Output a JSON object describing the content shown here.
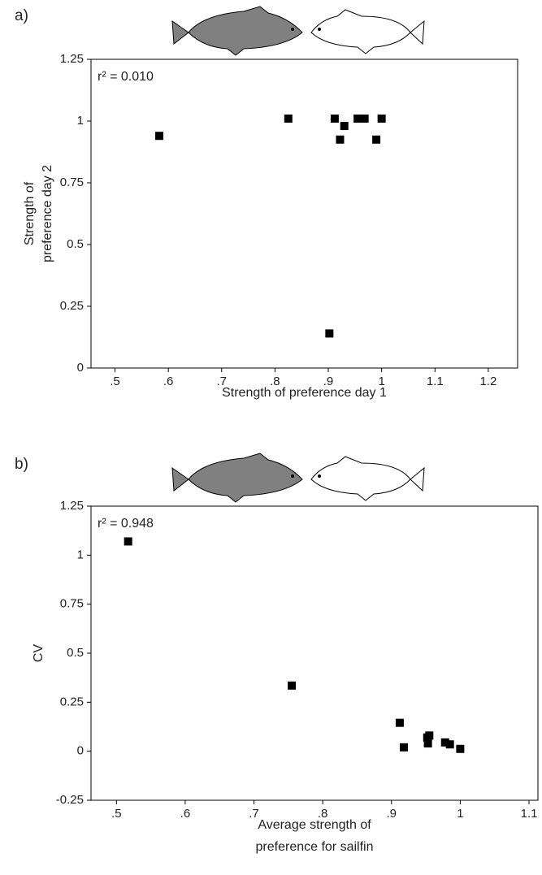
{
  "chart_data": [
    {
      "type": "scatter",
      "panel": "a)",
      "annotation": "r² = 0.010",
      "xlabel": "Strength of preference day 1",
      "ylabel": [
        "Strength of",
        "preference day 2"
      ],
      "x": [
        0.583,
        0.825,
        0.902,
        0.912,
        0.922,
        0.93,
        0.955,
        0.968,
        0.99,
        1.0
      ],
      "y": [
        0.94,
        1.01,
        0.14,
        1.01,
        0.925,
        0.98,
        1.01,
        1.01,
        0.925,
        1.01
      ],
      "color": "#000000",
      "xlim": [
        0.455,
        1.255
      ],
      "ylim": [
        0,
        1.25
      ],
      "xticks": [
        {
          "value": 0.5,
          "label": ".5"
        },
        {
          "value": 0.6,
          "label": ".6"
        },
        {
          "value": 0.7,
          "label": ".7"
        },
        {
          "value": 0.8,
          "label": ".8"
        },
        {
          "value": 0.9,
          "label": ".9"
        },
        1,
        1.1,
        1.2
      ],
      "yticks": [
        0,
        0.25,
        0.5,
        0.75,
        1,
        1.25
      ]
    },
    {
      "type": "scatter",
      "panel": "b)",
      "annotation": "r² = 0.948",
      "xlabel": [
        "Average strength of",
        "preference for sailfin"
      ],
      "ylabel": "CV",
      "x": [
        0.517,
        0.755,
        0.912,
        0.918,
        0.952,
        0.953,
        0.955,
        0.978,
        0.985,
        1.0
      ],
      "y": [
        1.07,
        0.335,
        0.145,
        0.02,
        0.07,
        0.04,
        0.08,
        0.045,
        0.035,
        0.012
      ],
      "color": "#000000",
      "xlim": [
        0.463,
        1.113
      ],
      "ylim": [
        -0.25,
        1.25
      ],
      "xticks": [
        {
          "value": 0.5,
          "label": ".5"
        },
        {
          "value": 0.6,
          "label": ".6"
        },
        {
          "value": 0.7,
          "label": ".7"
        },
        {
          "value": 0.8,
          "label": ".8"
        },
        {
          "value": 0.9,
          "label": ".9"
        },
        1,
        1.1
      ],
      "yticks": [
        -0.25,
        0,
        0.25,
        0.5,
        0.75,
        1,
        1.25
      ]
    }
  ]
}
